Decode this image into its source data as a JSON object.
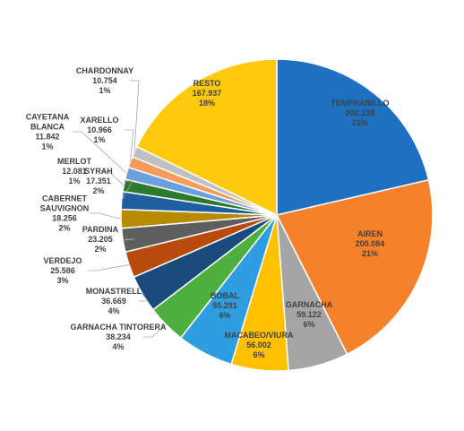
{
  "chart_data": {
    "type": "pie",
    "title": "",
    "slices": [
      {
        "label": "TEMPRANILLO",
        "value": "202.198",
        "pct": "21%",
        "color": "#1f70c1"
      },
      {
        "label": "AIREN",
        "value": "200.084",
        "pct": "21%",
        "color": "#f5822a"
      },
      {
        "label": "GARNACHA",
        "value": "59.122",
        "pct": "6%",
        "color": "#a5a5a5"
      },
      {
        "label": "MACABEO/VIURA",
        "value": "56.002",
        "pct": "6%",
        "color": "#ffc000"
      },
      {
        "label": "BOBAL",
        "value": "55.291",
        "pct": "6%",
        "color": "#2f9ee0"
      },
      {
        "label": "GARNACHA TINTORERA",
        "value": "38.234",
        "pct": "4%",
        "color": "#4caf3e"
      },
      {
        "label": "MONASTRELL",
        "value": "36.669",
        "pct": "4%",
        "color": "#1a4b7c"
      },
      {
        "label": "VERDEJO",
        "value": "25.586",
        "pct": "3%",
        "color": "#b84a0e"
      },
      {
        "label": "PARDINA",
        "value": "23.205",
        "pct": "2%",
        "color": "#5e5e5e"
      },
      {
        "label": "CABERNET SAUVIGNON",
        "value": "18.256",
        "pct": "2%",
        "color": "#b88a00"
      },
      {
        "label": "SYRAH",
        "value": "17.351",
        "pct": "2%",
        "color": "#1d5fa0"
      },
      {
        "label": "MERLOT",
        "value": "12.081",
        "pct": "1%",
        "color": "#2d7a2d"
      },
      {
        "label": "CAYETANA BLANCA",
        "value": "11.842",
        "pct": "1%",
        "color": "#6aa0dc"
      },
      {
        "label": "XARELLO",
        "value": "10.966",
        "pct": "1%",
        "color": "#f79b5a"
      },
      {
        "label": "CHARDONNAY",
        "value": "10.754",
        "pct": "1%",
        "color": "#c0c0c0"
      },
      {
        "label": "RESTO",
        "value": "167.937",
        "pct": "18%",
        "color": "#ffc90e"
      }
    ]
  }
}
